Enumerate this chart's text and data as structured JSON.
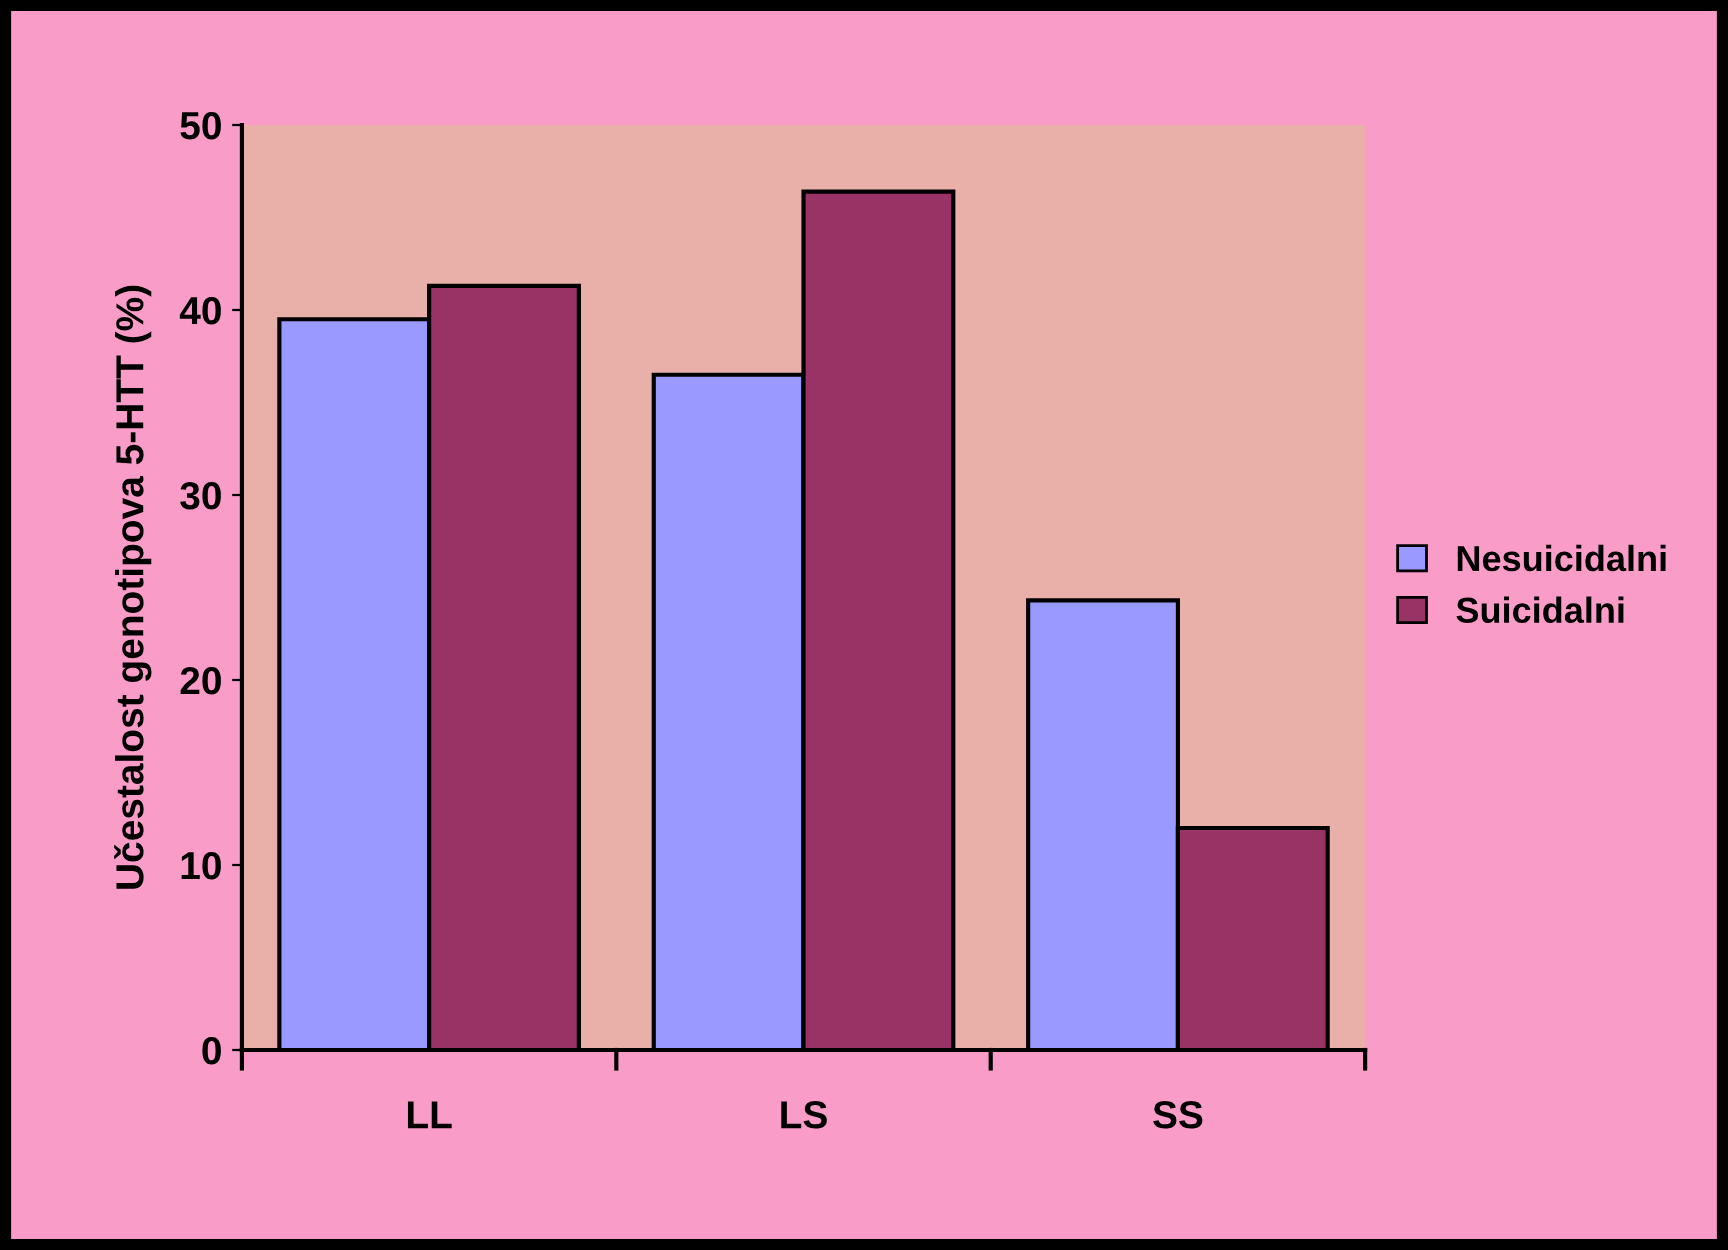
{
  "chart_data": {
    "type": "bar",
    "ylabel": "Učestalost genotipova 5-HTT (%)",
    "categories": [
      "LL",
      "LS",
      "SS"
    ],
    "series": [
      {
        "name": "Nesuicidalni",
        "color": "#9999ff",
        "values": [
          39.5,
          36.5,
          24.3
        ]
      },
      {
        "name": "Suicidalni",
        "color": "#993366",
        "values": [
          41.3,
          46.4,
          12.0
        ]
      }
    ],
    "ylim": [
      0,
      50
    ],
    "yticks": [
      0,
      10,
      20,
      30,
      40,
      50
    ],
    "grid": false,
    "legend": "right"
  }
}
